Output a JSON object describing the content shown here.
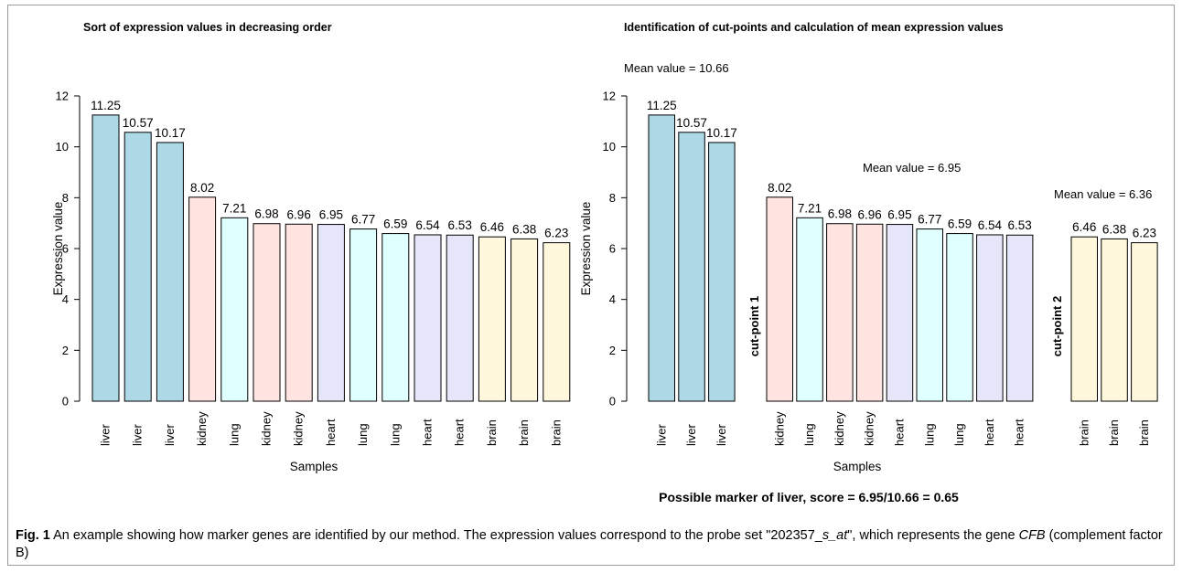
{
  "figure": {
    "caption": {
      "label": "Fig. 1",
      "text_a": " An example showing how marker genes are identified by our method. The expression values correspond to the probe set \"202357_",
      "probe_italic": "s_at",
      "text_b": "\", which represents the gene ",
      "gene_italic": "CFB",
      "text_c": " (complement factor B)"
    }
  },
  "chart_data": [
    {
      "type": "bar",
      "title": "Sort of expression values in decreasing order",
      "xlabel": "Samples",
      "ylabel": "Expression value",
      "ylim": [
        0,
        12
      ],
      "yticks": [
        0,
        2,
        4,
        6,
        8,
        10,
        12
      ],
      "categories": [
        "liver",
        "liver",
        "liver",
        "kidney",
        "lung",
        "kidney",
        "kidney",
        "heart",
        "lung",
        "lung",
        "heart",
        "heart",
        "brain",
        "brain",
        "brain"
      ],
      "values": [
        11.25,
        10.57,
        10.17,
        8.02,
        7.21,
        6.98,
        6.96,
        6.95,
        6.77,
        6.59,
        6.54,
        6.53,
        6.46,
        6.38,
        6.23
      ],
      "value_labels": [
        "11.25",
        "10.57",
        "10.17",
        "8.02",
        "7.21",
        "6.98",
        "6.96",
        "6.95",
        "6.77",
        "6.59",
        "6.54",
        "6.53",
        "6.46",
        "6.38",
        "6.23"
      ],
      "tissue_colors": {
        "liver": "#add8e6",
        "kidney": "#ffe4e1",
        "lung": "#e0ffff",
        "heart": "#e6e6fa",
        "brain": "#fff8dc"
      },
      "grid": false
    },
    {
      "type": "bar",
      "title": "Identification of cut-points and calculation of mean expression values",
      "xlabel": "Samples",
      "ylabel": "Expression value",
      "ylim": [
        0,
        12
      ],
      "yticks": [
        0,
        2,
        4,
        6,
        8,
        10,
        12
      ],
      "groups": [
        {
          "categories": [
            "liver",
            "liver",
            "liver"
          ],
          "values": [
            11.25,
            10.57,
            10.17
          ],
          "value_labels": [
            "11.25",
            "10.57",
            "10.17"
          ],
          "mean_label": "Mean value = 10.66"
        },
        {
          "categories": [
            "kidney",
            "lung",
            "kidney",
            "kidney",
            "heart",
            "lung",
            "lung",
            "heart",
            "heart"
          ],
          "values": [
            8.02,
            7.21,
            6.98,
            6.96,
            6.95,
            6.77,
            6.59,
            6.54,
            6.53
          ],
          "value_labels": [
            "8.02",
            "7.21",
            "6.98",
            "6.96",
            "6.95",
            "6.77",
            "6.59",
            "6.54",
            "6.53"
          ],
          "mean_label": "Mean value = 6.95"
        },
        {
          "categories": [
            "brain",
            "brain",
            "brain"
          ],
          "values": [
            6.46,
            6.38,
            6.23
          ],
          "value_labels": [
            "6.46",
            "6.38",
            "6.23"
          ],
          "mean_label": "Mean value = 6.36"
        }
      ],
      "cut_points": [
        "cut-point 1",
        "cut-point 2"
      ],
      "conclusion": "Possible marker of liver, score = 6.95/10.66 = 0.65",
      "tissue_colors": {
        "liver": "#add8e6",
        "kidney": "#ffe4e1",
        "lung": "#e0ffff",
        "heart": "#e6e6fa",
        "brain": "#fff8dc"
      },
      "grid": false
    }
  ]
}
